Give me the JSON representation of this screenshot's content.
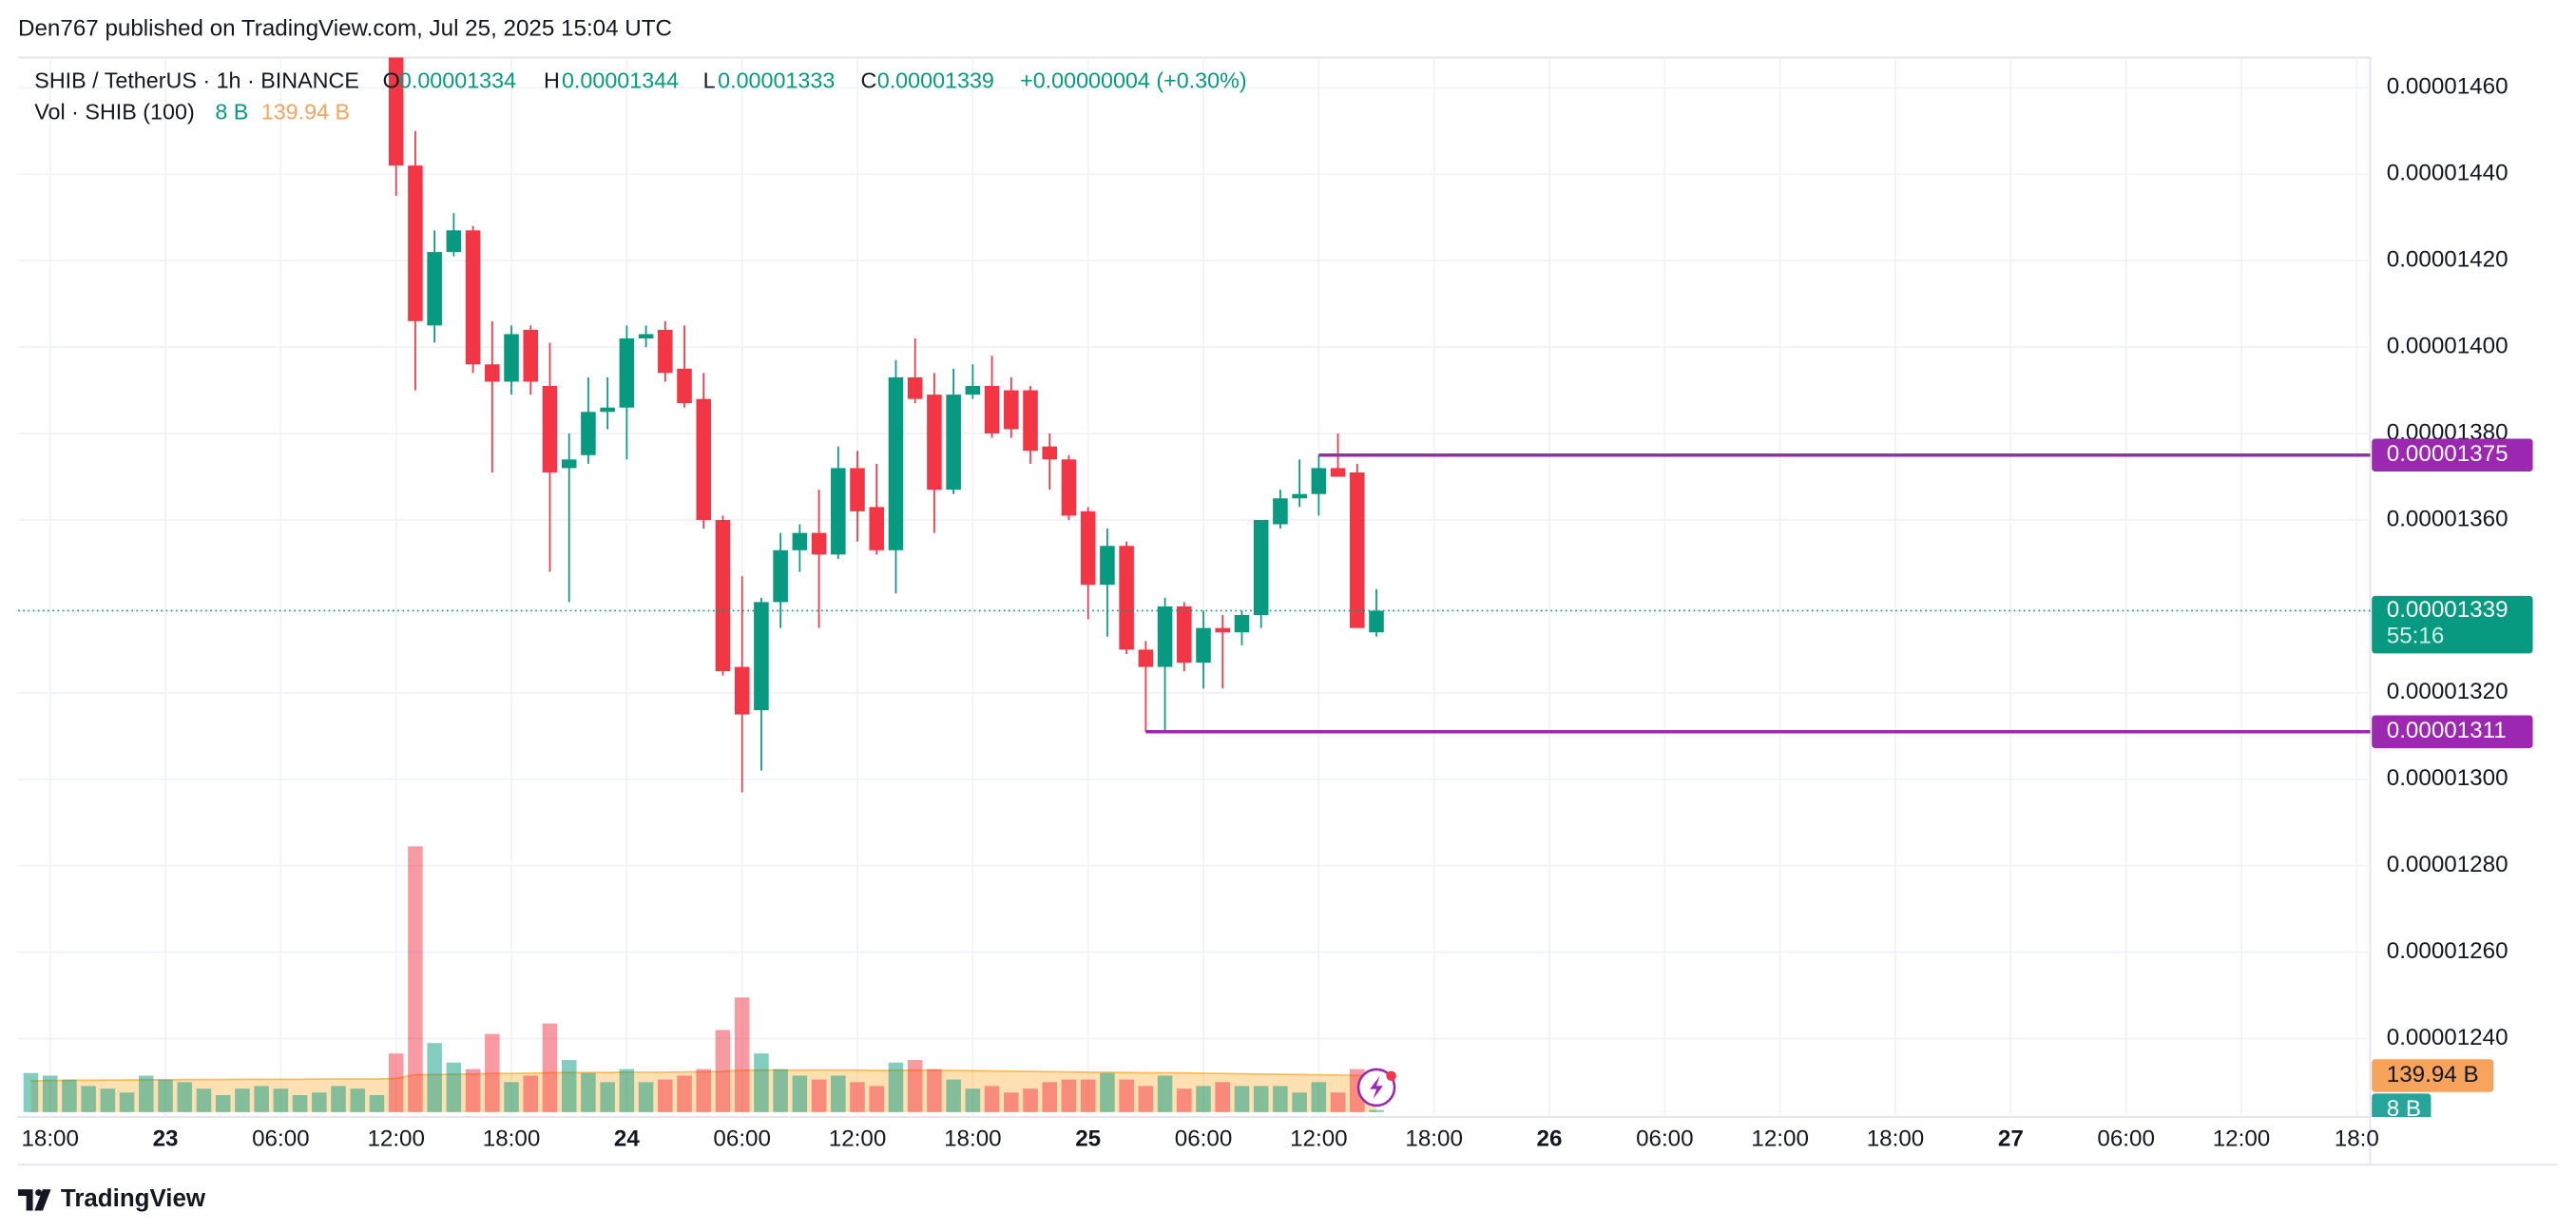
{
  "header": {
    "published": "Den767 published on TradingView.com, Jul 25, 2025 15:04 UTC"
  },
  "legend": {
    "symbol": "SHIB / TetherUS · 1h · BINANCE",
    "o_label": "O",
    "o": "0.00001334",
    "h_label": "H",
    "h": "0.00001344",
    "l_label": "L",
    "l": "0.00001333",
    "c_label": "C",
    "c": "0.00001339",
    "change": "+0.00000004 (+0.30%)",
    "volume_title": "Vol · SHIB (100)",
    "volume_last": "8 B",
    "volume_ma_last": "139.94 B"
  },
  "chart_data": {
    "type": "candlestick",
    "up_color": "#089981",
    "down_color": "#f23645",
    "volume_up_color": "rgba(8,153,129,0.5)",
    "volume_down_color": "rgba(242,54,69,0.5)",
    "volume_ma_color": "rgba(255,152,0,0.3)",
    "x": [
      "22 17:00",
      "22 18:00",
      "22 19:00",
      "22 20:00",
      "22 21:00",
      "22 22:00",
      "22 23:00",
      "23 00:00",
      "23 01:00",
      "23 02:00",
      "23 03:00",
      "23 04:00",
      "23 05:00",
      "23 06:00",
      "23 07:00",
      "23 08:00",
      "23 09:00",
      "23 10:00",
      "23 11:00",
      "23 12:00",
      "23 13:00",
      "23 14:00",
      "23 15:00",
      "23 16:00",
      "23 17:00",
      "23 18:00",
      "23 19:00",
      "23 20:00",
      "23 21:00",
      "23 22:00",
      "23 23:00",
      "24 00:00",
      "24 01:00",
      "24 02:00",
      "24 03:00",
      "24 04:00",
      "24 05:00",
      "24 06:00",
      "24 07:00",
      "24 08:00",
      "24 09:00",
      "24 10:00",
      "24 11:00",
      "24 12:00",
      "24 13:00",
      "24 14:00",
      "24 15:00",
      "24 16:00",
      "24 17:00",
      "24 18:00",
      "24 19:00",
      "24 20:00",
      "24 21:00",
      "24 22:00",
      "24 23:00",
      "25 00:00",
      "25 01:00",
      "25 02:00",
      "25 03:00",
      "25 04:00",
      "25 05:00",
      "25 06:00",
      "25 07:00",
      "25 08:00",
      "25 09:00",
      "25 10:00",
      "25 11:00",
      "25 12:00",
      "25 13:00",
      "25 14:00",
      "25 15:00"
    ],
    "open": [
      null,
      null,
      null,
      null,
      null,
      null,
      null,
      null,
      null,
      null,
      null,
      null,
      null,
      null,
      null,
      null,
      null,
      null,
      null,
      1.478e-05,
      1.442e-05,
      1.405e-05,
      1.422e-05,
      1.427e-05,
      1.396e-05,
      1.392e-05,
      1.404e-05,
      1.391e-05,
      1.372e-05,
      1.375e-05,
      1.385e-05,
      1.386e-05,
      1.402e-05,
      1.404e-05,
      1.395e-05,
      1.388e-05,
      1.36e-05,
      1.326e-05,
      1.316e-05,
      1.341e-05,
      1.353e-05,
      1.357e-05,
      1.352e-05,
      1.372e-05,
      1.363e-05,
      1.353e-05,
      1.393e-05,
      1.389e-05,
      1.367e-05,
      1.389e-05,
      1.391e-05,
      1.39e-05,
      1.39e-05,
      1.377e-05,
      1.374e-05,
      1.362e-05,
      1.345e-05,
      1.354e-05,
      1.33e-05,
      1.326e-05,
      1.34e-05,
      1.327e-05,
      1.335e-05,
      1.334e-05,
      1.338e-05,
      1.359e-05,
      1.365e-05,
      1.366e-05,
      1.372e-05,
      1.371e-05,
      1.334e-05
    ],
    "high": [
      null,
      null,
      null,
      null,
      null,
      null,
      null,
      null,
      null,
      null,
      null,
      null,
      null,
      null,
      null,
      null,
      null,
      null,
      null,
      1.482e-05,
      1.45e-05,
      1.427e-05,
      1.431e-05,
      1.428e-05,
      1.406e-05,
      1.405e-05,
      1.405e-05,
      1.401e-05,
      1.38e-05,
      1.393e-05,
      1.393e-05,
      1.405e-05,
      1.405e-05,
      1.406e-05,
      1.405e-05,
      1.394e-05,
      1.361e-05,
      1.347e-05,
      1.342e-05,
      1.357e-05,
      1.359e-05,
      1.367e-05,
      1.377e-05,
      1.376e-05,
      1.373e-05,
      1.397e-05,
      1.402e-05,
      1.394e-05,
      1.395e-05,
      1.396e-05,
      1.398e-05,
      1.393e-05,
      1.391e-05,
      1.38e-05,
      1.375e-05,
      1.363e-05,
      1.358e-05,
      1.355e-05,
      1.332e-05,
      1.342e-05,
      1.341e-05,
      1.339e-05,
      1.338e-05,
      1.339e-05,
      1.36e-05,
      1.367e-05,
      1.374e-05,
      1.375e-05,
      1.38e-05,
      1.373e-05,
      1.344e-05
    ],
    "low": [
      null,
      null,
      null,
      null,
      null,
      null,
      null,
      null,
      null,
      null,
      null,
      null,
      null,
      null,
      null,
      null,
      null,
      null,
      null,
      1.435e-05,
      1.39e-05,
      1.401e-05,
      1.421e-05,
      1.394e-05,
      1.371e-05,
      1.389e-05,
      1.389e-05,
      1.348e-05,
      1.341e-05,
      1.373e-05,
      1.381e-05,
      1.374e-05,
      1.4e-05,
      1.392e-05,
      1.386e-05,
      1.358e-05,
      1.324e-05,
      1.297e-05,
      1.302e-05,
      1.335e-05,
      1.348e-05,
      1.335e-05,
      1.351e-05,
      1.355e-05,
      1.352e-05,
      1.343e-05,
      1.387e-05,
      1.357e-05,
      1.366e-05,
      1.388e-05,
      1.379e-05,
      1.379e-05,
      1.373e-05,
      1.367e-05,
      1.36e-05,
      1.337e-05,
      1.333e-05,
      1.329e-05,
      1.311e-05,
      1.311e-05,
      1.325e-05,
      1.321e-05,
      1.321e-05,
      1.331e-05,
      1.335e-05,
      1.358e-05,
      1.363e-05,
      1.361e-05,
      1.37e-05,
      1.335e-05,
      1.333e-05
    ],
    "close": [
      null,
      null,
      null,
      null,
      null,
      null,
      null,
      null,
      null,
      null,
      null,
      null,
      null,
      null,
      null,
      null,
      null,
      null,
      null,
      1.442e-05,
      1.406e-05,
      1.422e-05,
      1.427e-05,
      1.396e-05,
      1.392e-05,
      1.403e-05,
      1.392e-05,
      1.371e-05,
      1.374e-05,
      1.385e-05,
      1.386e-05,
      1.402e-05,
      1.403e-05,
      1.394e-05,
      1.387e-05,
      1.36e-05,
      1.325e-05,
      1.315e-05,
      1.341e-05,
      1.353e-05,
      1.357e-05,
      1.352e-05,
      1.372e-05,
      1.362e-05,
      1.353e-05,
      1.393e-05,
      1.388e-05,
      1.367e-05,
      1.389e-05,
      1.391e-05,
      1.38e-05,
      1.381e-05,
      1.376e-05,
      1.374e-05,
      1.361e-05,
      1.345e-05,
      1.354e-05,
      1.33e-05,
      1.326e-05,
      1.34e-05,
      1.327e-05,
      1.335e-05,
      1.334e-05,
      1.338e-05,
      1.36e-05,
      1.365e-05,
      1.366e-05,
      1.372e-05,
      1.37e-05,
      1.335e-05,
      1.339e-05
    ],
    "volume": [
      150,
      140,
      125,
      100,
      90,
      75,
      140,
      125,
      115,
      90,
      65,
      90,
      100,
      90,
      65,
      75,
      100,
      90,
      65,
      225,
      1020,
      265,
      190,
      165,
      300,
      115,
      140,
      340,
      200,
      150,
      115,
      165,
      115,
      125,
      140,
      165,
      315,
      440,
      225,
      165,
      140,
      125,
      140,
      115,
      100,
      190,
      200,
      165,
      125,
      90,
      100,
      75,
      90,
      115,
      125,
      125,
      150,
      125,
      100,
      140,
      90,
      100,
      115,
      100,
      100,
      100,
      75,
      115,
      75,
      165,
      8
    ],
    "volume_ma": [
      120,
      121,
      122,
      122,
      123,
      123,
      124,
      124,
      125,
      125,
      125,
      126,
      126,
      126,
      126,
      127,
      127,
      127,
      127,
      129,
      143,
      144,
      145,
      146,
      148,
      148,
      149,
      151,
      152,
      152,
      152,
      153,
      153,
      153,
      154,
      154,
      156,
      160,
      161,
      161,
      161,
      161,
      161,
      161,
      160,
      160,
      161,
      161,
      160,
      159,
      158,
      157,
      156,
      155,
      154,
      153,
      153,
      152,
      151,
      151,
      150,
      149,
      148,
      147,
      146,
      145,
      144,
      143,
      142,
      141,
      139.94
    ],
    "volume_ylim": [
      0,
      1400
    ],
    "xlim": [
      "22 16:20",
      "27 18:42"
    ],
    "xticks": [
      {
        "value": "22 18:00",
        "label": "18:00"
      },
      {
        "value": "23 00:00",
        "label": "23"
      },
      {
        "value": "23 06:00",
        "label": "06:00"
      },
      {
        "value": "23 12:00",
        "label": "12:00"
      },
      {
        "value": "23 18:00",
        "label": "18:00"
      },
      {
        "value": "24 00:00",
        "label": "24"
      },
      {
        "value": "24 06:00",
        "label": "06:00"
      },
      {
        "value": "24 12:00",
        "label": "12:00"
      },
      {
        "value": "24 18:00",
        "label": "18:00"
      },
      {
        "value": "25 00:00",
        "label": "25"
      },
      {
        "value": "25 06:00",
        "label": "06:00"
      },
      {
        "value": "25 12:00",
        "label": "12:00"
      },
      {
        "value": "25 18:00",
        "label": "18:00"
      },
      {
        "value": "26 00:00",
        "label": "26"
      },
      {
        "value": "26 06:00",
        "label": "06:00"
      },
      {
        "value": "26 12:00",
        "label": "12:00"
      },
      {
        "value": "26 18:00",
        "label": "18:00"
      },
      {
        "value": "27 00:00",
        "label": "27"
      },
      {
        "value": "27 06:00",
        "label": "06:00"
      },
      {
        "value": "27 12:00",
        "label": "12:00"
      },
      {
        "value": "27 18:00",
        "label": "18:0"
      }
    ],
    "ylim": [
      1.223e-05,
      1.467e-05
    ],
    "yticks": [
      {
        "value": 1.24e-05,
        "label": "0.00001240"
      },
      {
        "value": 1.26e-05,
        "label": "0.00001260"
      },
      {
        "value": 1.28e-05,
        "label": "0.00001280"
      },
      {
        "value": 1.3e-05,
        "label": "0.00001300"
      },
      {
        "value": 1.32e-05,
        "label": "0.00001320"
      },
      {
        "value": 1.36e-05,
        "label": "0.00001360"
      },
      {
        "value": 1.38e-05,
        "label": "0.00001380"
      },
      {
        "value": 1.4e-05,
        "label": "0.00001400"
      },
      {
        "value": 1.42e-05,
        "label": "0.00001420"
      },
      {
        "value": 1.44e-05,
        "label": "0.00001440"
      },
      {
        "value": 1.46e-05,
        "label": "0.00001460"
      }
    ],
    "grid": true,
    "levels": [
      {
        "value": 1.375e-05,
        "label": "0.00001375",
        "from": "25 12:00",
        "color": "#9c27b0"
      },
      {
        "value": 1.311e-05,
        "label": "0.00001311",
        "from": "25 03:00",
        "color": "#9c27b0"
      }
    ],
    "last": {
      "value": 1.339e-05,
      "label": "0.00001339",
      "countdown": "55:16"
    },
    "volume_axis_labels": {
      "ma": "139.94 B",
      "last": "8 B"
    }
  },
  "footer": {
    "brand": "TradingView"
  }
}
